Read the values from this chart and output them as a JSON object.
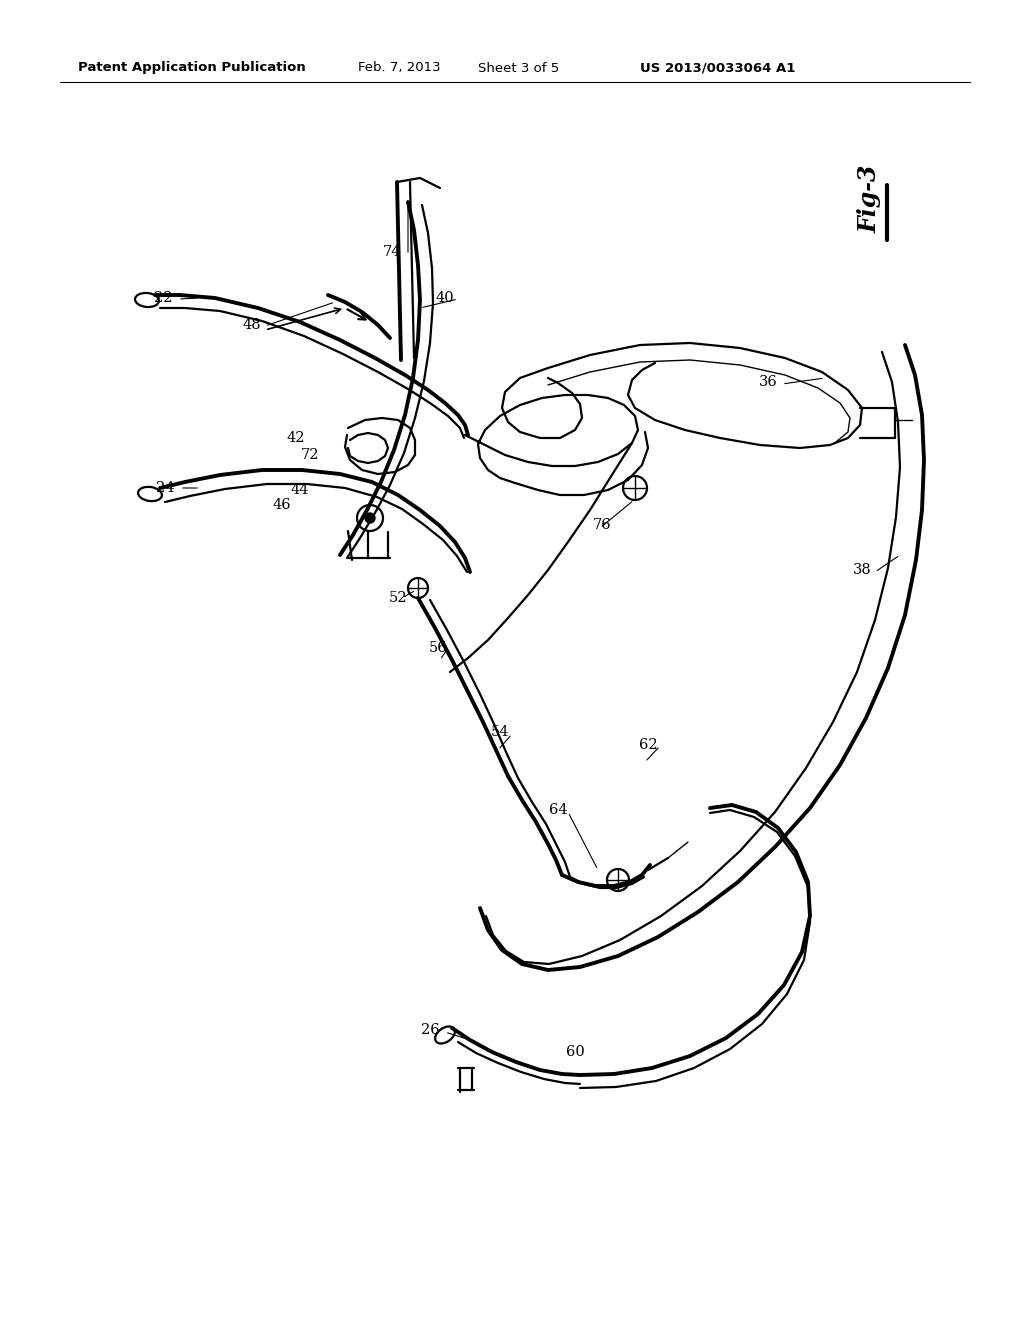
{
  "bg_color": "#ffffff",
  "line_color": "#000000",
  "header_text": "Patent Application Publication",
  "header_date": "Feb. 7, 2013",
  "header_sheet": "Sheet 3 of 5",
  "header_patent": "US 2013/0033064 A1",
  "fig_label": "Fig-3",
  "lw_main": 1.6,
  "lw_thin": 1.0,
  "lw_thick": 2.8,
  "lw_med": 2.0
}
